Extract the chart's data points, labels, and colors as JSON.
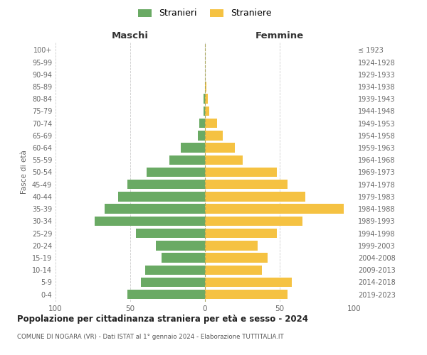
{
  "age_groups": [
    "0-4",
    "5-9",
    "10-14",
    "15-19",
    "20-24",
    "25-29",
    "30-34",
    "35-39",
    "40-44",
    "45-49",
    "50-54",
    "55-59",
    "60-64",
    "65-69",
    "70-74",
    "75-79",
    "80-84",
    "85-89",
    "90-94",
    "95-99",
    "100+"
  ],
  "birth_years": [
    "2019-2023",
    "2014-2018",
    "2009-2013",
    "2004-2008",
    "1999-2003",
    "1994-1998",
    "1989-1993",
    "1984-1988",
    "1979-1983",
    "1974-1978",
    "1969-1973",
    "1964-1968",
    "1959-1963",
    "1954-1958",
    "1949-1953",
    "1944-1948",
    "1939-1943",
    "1934-1938",
    "1929-1933",
    "1924-1928",
    "≤ 1923"
  ],
  "maschi": [
    52,
    43,
    40,
    29,
    33,
    46,
    74,
    67,
    58,
    52,
    39,
    24,
    16,
    5,
    4,
    1,
    1,
    0,
    0,
    0,
    0
  ],
  "femmine": [
    55,
    58,
    38,
    42,
    35,
    48,
    65,
    93,
    67,
    55,
    48,
    25,
    20,
    12,
    8,
    3,
    2,
    1,
    0,
    0,
    0
  ],
  "color_maschi": "#6aaa64",
  "color_femmine": "#f5c242",
  "background_color": "#ffffff",
  "grid_color": "#cccccc",
  "title": "Popolazione per cittadinanza straniera per età e sesso - 2024",
  "subtitle": "COMUNE DI NOGARA (VR) - Dati ISTAT al 1° gennaio 2024 - Elaborazione TUTTITALIA.IT",
  "legend_stranieri": "Stranieri",
  "legend_straniere": "Straniere",
  "xlabel_left": "Maschi",
  "xlabel_right": "Femmine",
  "ylabel_left": "Fasce di età",
  "xlim": 100
}
